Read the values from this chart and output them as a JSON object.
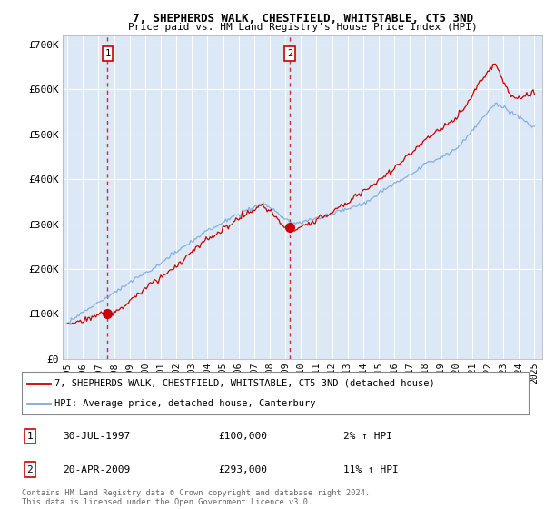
{
  "title1": "7, SHEPHERDS WALK, CHESTFIELD, WHITSTABLE, CT5 3ND",
  "title2": "Price paid vs. HM Land Registry's House Price Index (HPI)",
  "bg_color": "#ffffff",
  "plot_bg_color": "#dce8f5",
  "plot_bg_color_right": "#e8eef8",
  "grid_color": "#c8d8e8",
  "line1_color": "#cc0000",
  "line2_color": "#7aaadd",
  "ylim": [
    0,
    720000
  ],
  "yticks": [
    0,
    100000,
    200000,
    300000,
    400000,
    500000,
    600000,
    700000
  ],
  "ytick_labels": [
    "£0",
    "£100K",
    "£200K",
    "£300K",
    "£400K",
    "£500K",
    "£600K",
    "£700K"
  ],
  "xlim_start": 1994.7,
  "xlim_end": 2025.5,
  "sale1_year": 1997.58,
  "sale1_price": 100000,
  "sale2_year": 2009.29,
  "sale2_price": 293000,
  "legend1": "7, SHEPHERDS WALK, CHESTFIELD, WHITSTABLE, CT5 3ND (detached house)",
  "legend2": "HPI: Average price, detached house, Canterbury",
  "annotation1_date": "30-JUL-1997",
  "annotation1_price": "£100,000",
  "annotation1_hpi": "2% ↑ HPI",
  "annotation2_date": "20-APR-2009",
  "annotation2_price": "£293,000",
  "annotation2_hpi": "11% ↑ HPI",
  "footer": "Contains HM Land Registry data © Crown copyright and database right 2024.\nThis data is licensed under the Open Government Licence v3.0."
}
